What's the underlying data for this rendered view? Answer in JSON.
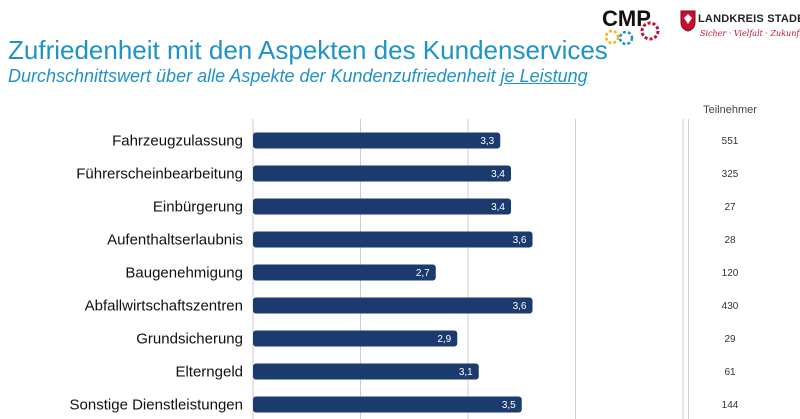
{
  "header": {
    "title": "Zufriedenheit mit den Aspekten des Kundenservices",
    "subtitle_prefix": "Durchschnittswert über alle Aspekte der Kundenzufriedenheit ",
    "subtitle_emphasis": "je Leistung"
  },
  "logos": {
    "cmp_text": "CMP",
    "landkreis_name": "LANDKREIS STADE",
    "landkreis_slogan": "Sicher · Vielfalt · Zukunft",
    "landkreis_color": "#c8102e",
    "cmp_gear_colors": [
      "#f3b61f",
      "#1f93c7",
      "#c8102e"
    ]
  },
  "participants": {
    "header": "Teilnehmer"
  },
  "colors": {
    "bar": "#1b3a6e",
    "title": "#1f93c7",
    "grid": "#cccccc"
  },
  "chart_data": {
    "type": "bar",
    "orientation": "horizontal",
    "categories": [
      "Fahrzeugzulassung",
      "Führerscheinbearbeitung",
      "Einbürgerung",
      "Aufenthaltserlaubnis",
      "Baugenehmigung",
      "Abfallwirtschaftszentren",
      "Grundsicherung",
      "Elterngeld",
      "Sonstige Dienstleistungen"
    ],
    "values": [
      3.3,
      3.4,
      3.4,
      3.6,
      2.7,
      3.6,
      2.9,
      3.1,
      3.5
    ],
    "value_labels": [
      "3,3",
      "3,4",
      "3,4",
      "3,6",
      "2,7",
      "3,6",
      "2,9",
      "3,1",
      "3,5"
    ],
    "participants": [
      "551",
      "325",
      "27",
      "28",
      "120",
      "430",
      "29",
      "61",
      "144"
    ],
    "xlim": [
      1,
      5
    ],
    "grid": true,
    "legend": "none"
  }
}
